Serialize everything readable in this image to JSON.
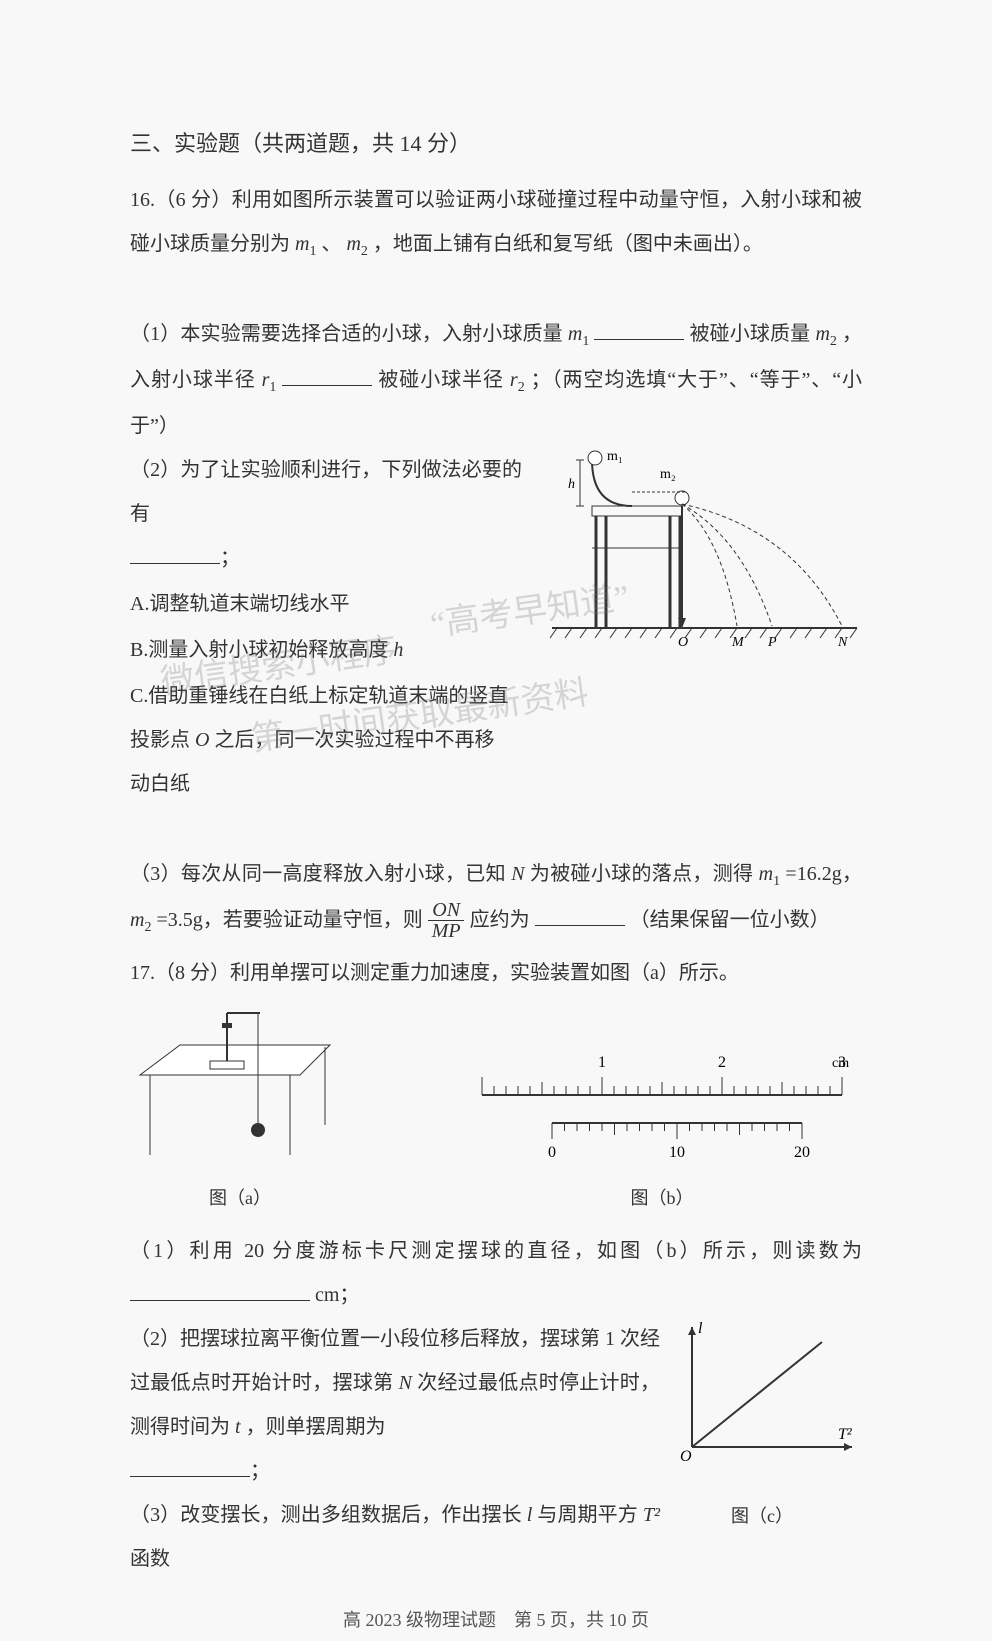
{
  "section": {
    "title": "三、实验题（共两道题，共 14 分）"
  },
  "q16": {
    "stem": "16.（6 分）利用如图所示装置可以验证两小球碰撞过程中动量守恒，入射小球和被碰小球质量分别为 ",
    "stem_m1": "m",
    "stem_m1_sub": "1",
    "stem_sep": "、",
    "stem_m2": "m",
    "stem_m2_sub": "2",
    "stem_tail": "，地面上铺有白纸和复写纸（图中未画出）。",
    "p1_a": "（1）本实验需要选择合适的小球，入射小球质量 ",
    "p1_m1": "m",
    "p1_m1_sub": "1",
    "p1_b": "被碰小球质量 ",
    "p1_m2": "m",
    "p1_m2_sub": "2",
    "p1_c": "，入射小球半径 ",
    "p1_r1": "r",
    "p1_r1_sub": "1",
    "p1_d": "被碰小球半径 ",
    "p1_r2": "r",
    "p1_r2_sub": "2",
    "p1_e": "；（两空均选填“大于”、“等于”、“小于”）",
    "p2": "（2）为了让实验顺利进行，下列做法必要的有",
    "p2_semi": "；",
    "optA": "A.调整轨道末端切线水平",
    "optB_a": "B.测量入射小球初始释放高度 ",
    "optB_h": "h",
    "optC_a": "C.借助重锤线在白纸上标定轨道末端的竖直投影点 ",
    "optC_O": "O",
    "optC_b": " 之后，同一次实验过程中不再移动白纸",
    "p3_a": "（3）每次从同一高度释放入射小球，已知 ",
    "p3_N": "N",
    "p3_b": " 为被碰小球的落点，测得 ",
    "p3_m1": "m",
    "p3_m1_sub": "1",
    "p3_v1": "=16.2g，",
    "p3_m2": "m",
    "p3_m2_sub": "2",
    "p3_v2": "=3.5g，若要验证动量守恒，则 ",
    "frac_num": "ON",
    "frac_den": "MP",
    "p3_c": " 应约为",
    "p3_d": "（结果保留一位小数）",
    "diagram": {
      "m1_label": "m₁",
      "m2_label": "m₂",
      "h_label": "h",
      "O": "O",
      "M": "M",
      "P": "P",
      "N": "N",
      "colors": {
        "stroke": "#333333",
        "dash": "#333333",
        "bg": "#ffffff"
      }
    }
  },
  "q17": {
    "stem": "17.（8 分）利用单摆可以测定重力加速度，实验装置如图（a）所示。",
    "p1_a": "（1）利用 20 分度游标卡尺测定摆球的直径，如图（b）所示，则读数为",
    "p1_unit": "cm；",
    "p2_a": "（2）把摆球拉离平衡位置一小段位移后释放，摆球第 1 次经过最低点时开始计时，摆球第 ",
    "p2_N": "N",
    "p2_b": " 次经过最低点时停止计时，测得时间为 ",
    "p2_t": "t",
    "p2_c": "，则单摆周期为",
    "p2_semi": "；",
    "p3_a": "（3）改变摆长，测出多组数据后，作出摆长 ",
    "p3_l": "l",
    "p3_b": " 与周期平方 ",
    "p3_T2": "T²",
    "p3_c": " 函数",
    "figA_caption": "图（a）",
    "figB_caption": "图（b）",
    "figC_caption": "图（c）",
    "figA": {
      "stroke": "#333333",
      "table_fill": "#ffffff"
    },
    "figB": {
      "top_labels": [
        "1",
        "2",
        "3"
      ],
      "top_unit": "cm",
      "bottom_labels": [
        "0",
        "10",
        "20"
      ],
      "main_start": 0,
      "main_end": 30,
      "main_tick": 1,
      "vernier_start": 0,
      "vernier_end": 20,
      "stroke": "#333333"
    },
    "figC": {
      "y_label": "l",
      "x_label": "T²",
      "O_label": "O",
      "stroke": "#333333"
    }
  },
  "watermarks": {
    "w1": "“高考早知道”",
    "w2": "微信搜索小程序",
    "w3": "第一时间获取最新资料"
  },
  "footer": "高 2023 级物理试题　第 5 页，共 10 页"
}
